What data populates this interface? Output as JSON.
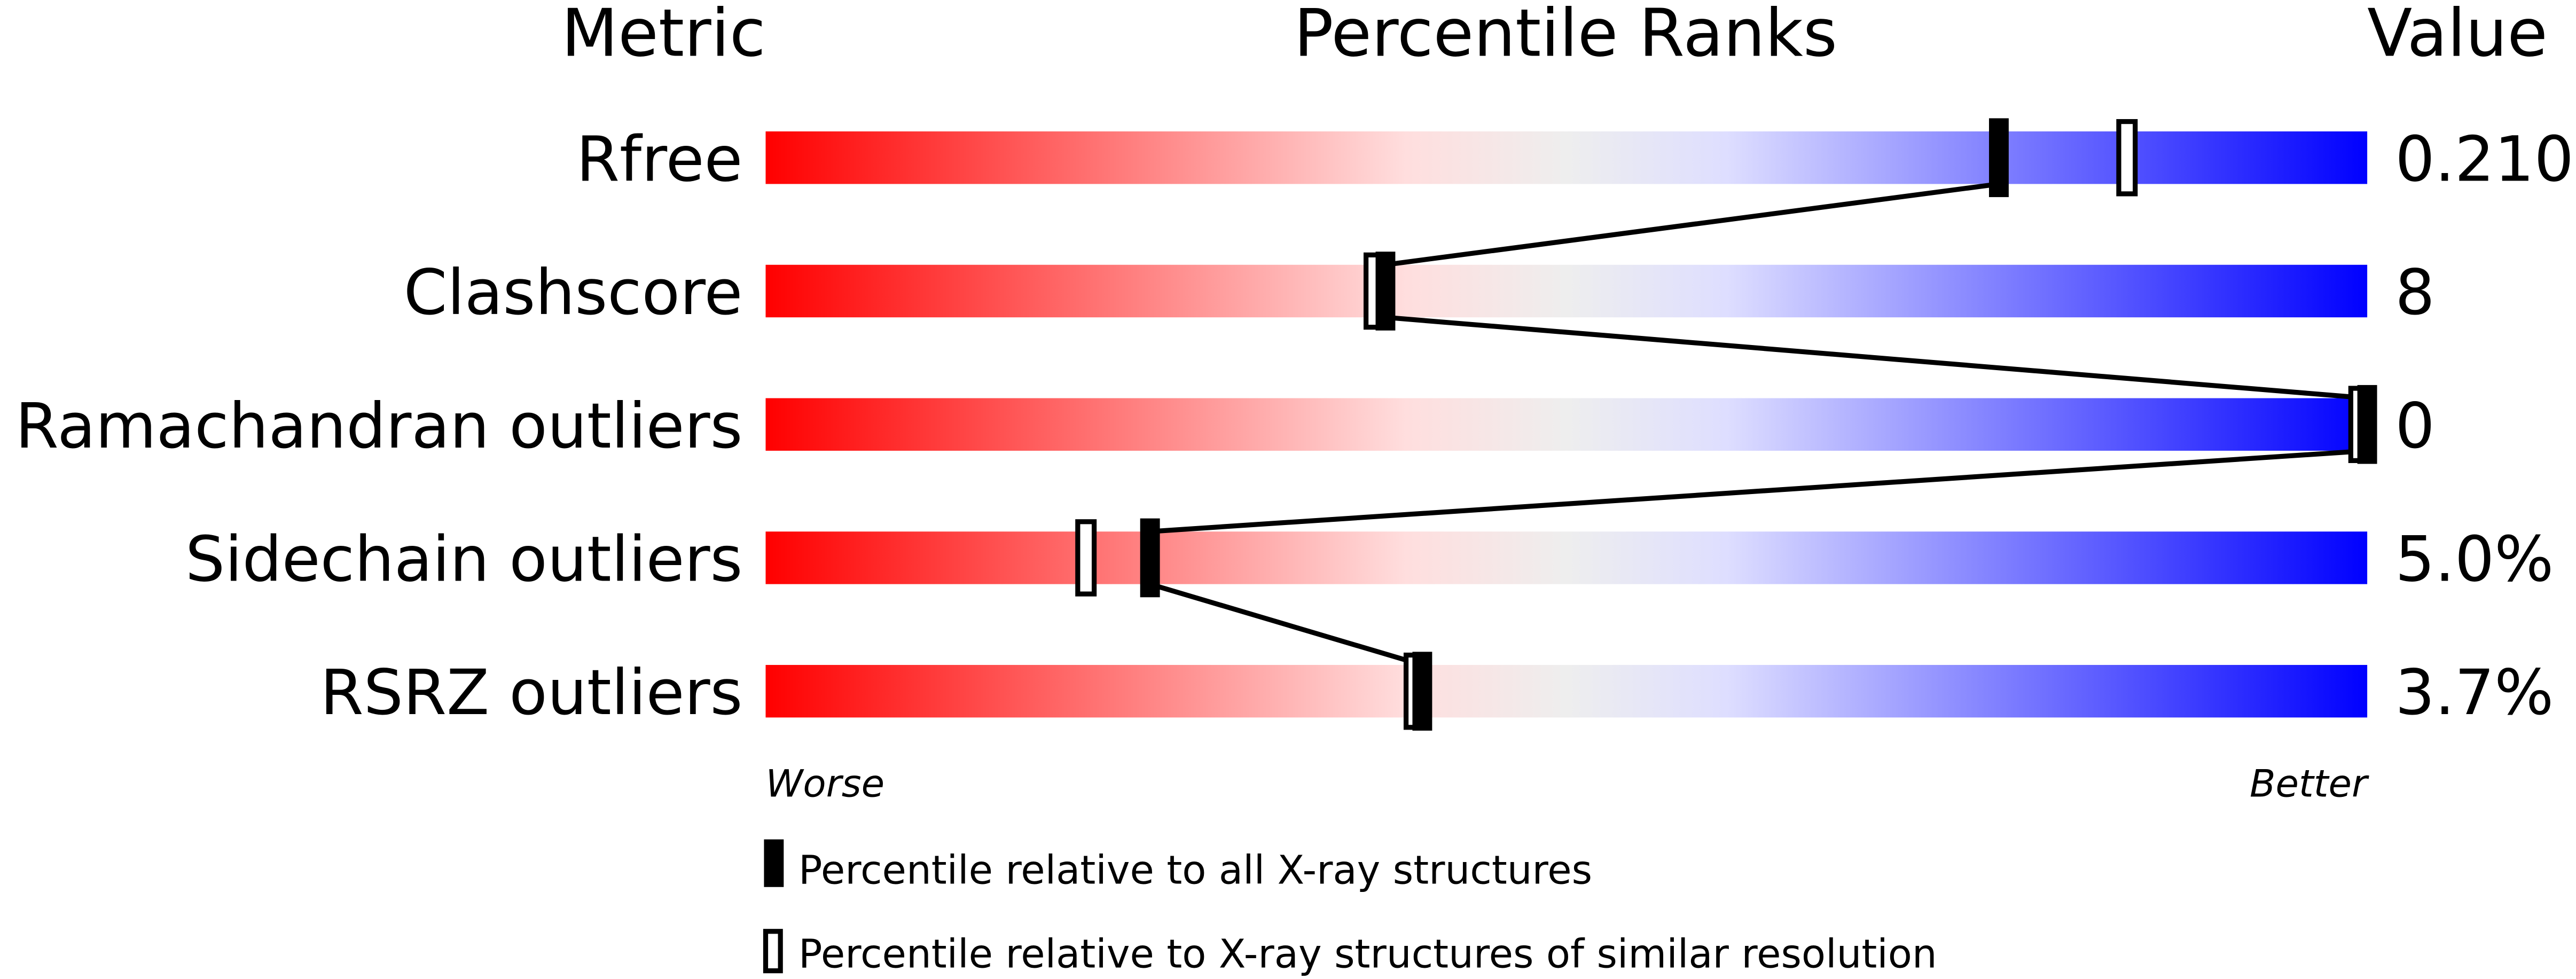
{
  "chart_data": {
    "type": "percentile-slider",
    "headers": {
      "metric": "Metric",
      "ranks": "Percentile Ranks",
      "value": "Value"
    },
    "xlim": [
      0,
      100
    ],
    "axis_labels": {
      "left": "Worse",
      "right": "Better"
    },
    "colors": {
      "worse": "#ff0000",
      "middle": "#eeeeee",
      "better": "#0000ff",
      "marker": "#000000"
    },
    "metrics": [
      {
        "name": "Rfree",
        "value": "0.210",
        "percentile_all": 77,
        "percentile_similar": 85
      },
      {
        "name": "Clashscore",
        "value": "8",
        "percentile_all": 38.7,
        "percentile_similar": 38
      },
      {
        "name": "Ramachandran outliers",
        "value": "0",
        "percentile_all": 100,
        "percentile_similar": 100
      },
      {
        "name": "Sidechain outliers",
        "value": "5.0%",
        "percentile_all": 24,
        "percentile_similar": 20
      },
      {
        "name": "RSRZ outliers",
        "value": "3.7%",
        "percentile_all": 41,
        "percentile_similar": 40.5
      }
    ],
    "legend": [
      {
        "marker": "filled",
        "label": "Percentile relative to all X-ray structures"
      },
      {
        "marker": "hollow",
        "label": "Percentile relative to X-ray structures of similar resolution"
      }
    ]
  }
}
